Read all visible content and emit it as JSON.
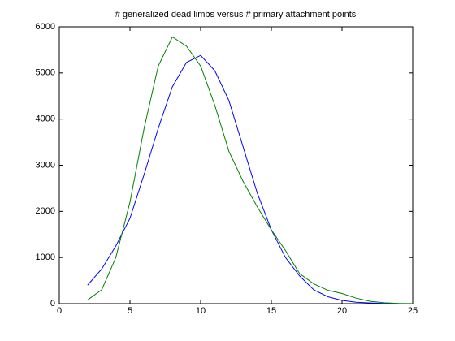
{
  "chart_data": {
    "type": "line",
    "title": "# generalized dead limbs versus # primary attachment points",
    "x": [
      2,
      3,
      4,
      5,
      6,
      7,
      8,
      9,
      10,
      11,
      12,
      13,
      14,
      15,
      16,
      17,
      18,
      19,
      20,
      21,
      22,
      23,
      24,
      25
    ],
    "series": [
      {
        "color": "#0000ff",
        "values": [
          400,
          750,
          1250,
          1850,
          2800,
          3800,
          4700,
          5230,
          5380,
          5050,
          4400,
          3400,
          2400,
          1600,
          1000,
          600,
          300,
          150,
          70,
          30,
          15,
          5,
          2,
          1
        ]
      },
      {
        "color": "#008000",
        "values": [
          80,
          300,
          1000,
          2200,
          3800,
          5150,
          5780,
          5580,
          5150,
          4300,
          3300,
          2650,
          2100,
          1600,
          1150,
          650,
          430,
          290,
          220,
          120,
          50,
          20,
          5,
          2
        ]
      }
    ],
    "xlim": [
      0,
      25
    ],
    "xticks": [
      0,
      5,
      10,
      15,
      20,
      25
    ],
    "ylim": [
      0,
      6000
    ],
    "yticks": [
      0,
      1000,
      2000,
      3000,
      4000,
      5000,
      6000
    ],
    "grid": false
  }
}
